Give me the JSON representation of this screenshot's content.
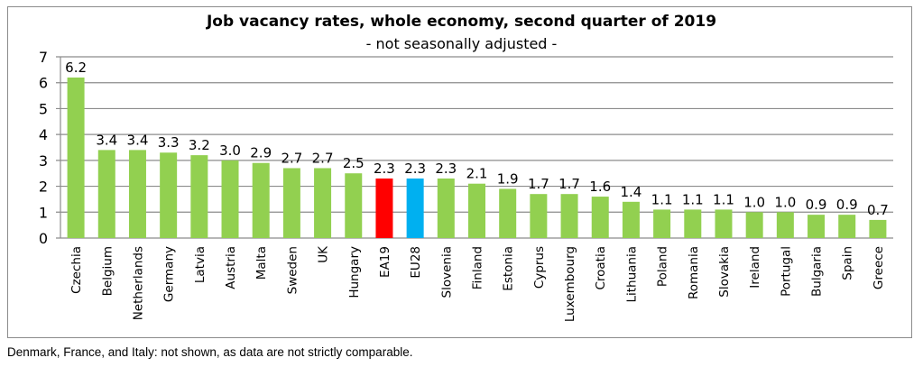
{
  "chart_data": {
    "type": "bar",
    "title": "Job vacancy rates, whole economy, second quarter of 2019",
    "subtitle": "- not seasonally adjusted -",
    "categories": [
      "Czechia",
      "Belgium",
      "Netherlands",
      "Germany",
      "Latvia",
      "Austria",
      "Malta",
      "Sweden",
      "UK",
      "Hungary",
      "EA19",
      "EU28",
      "Slovenia",
      "Finland",
      "Estonia",
      "Cyprus",
      "Luxembourg",
      "Croatia",
      "Lithuania",
      "Poland",
      "Romania",
      "Slovakia",
      "Ireland",
      "Portugal",
      "Bulgaria",
      "Spain",
      "Greece"
    ],
    "values": [
      6.2,
      3.4,
      3.4,
      3.3,
      3.2,
      3.0,
      2.9,
      2.7,
      2.7,
      2.5,
      2.3,
      2.3,
      2.3,
      2.1,
      1.9,
      1.7,
      1.7,
      1.6,
      1.4,
      1.1,
      1.1,
      1.1,
      1.0,
      1.0,
      0.9,
      0.9,
      0.7
    ],
    "ylim": [
      0,
      7
    ],
    "yticks": [
      "0",
      "1",
      "2",
      "3",
      "4",
      "5",
      "6",
      "7"
    ],
    "grid": true,
    "legend": "none",
    "colors": {
      "default": "#92d050",
      "EA19": "#ff0000",
      "EU28": "#00b0f0"
    },
    "xlabel": "",
    "ylabel": ""
  },
  "footnote": "Denmark, France, and Italy: not shown, as data are not strictly comparable."
}
